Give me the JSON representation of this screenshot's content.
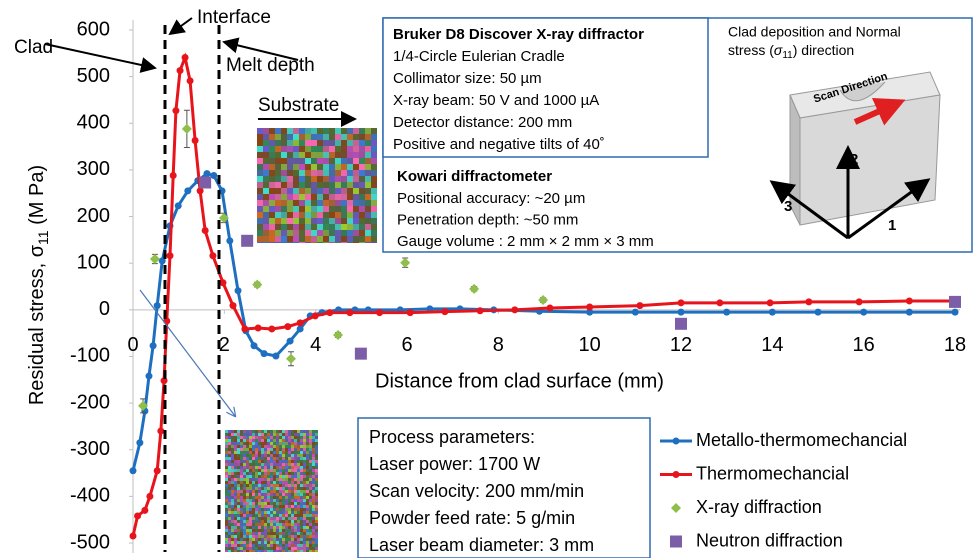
{
  "chart_data": {
    "type": "line",
    "x_label": "Distance from clad surface (mm)",
    "y_label": [
      "Residual stress, σ",
      "11",
      " (M Pa)"
    ],
    "xlim": [
      0,
      18
    ],
    "ylim": [
      -500,
      600
    ],
    "xticks": [
      0,
      2,
      4,
      6,
      8,
      10,
      12,
      14,
      16,
      18
    ],
    "yticks": [
      -500,
      -400,
      -300,
      -200,
      -100,
      0,
      100,
      200,
      300,
      400,
      500,
      600
    ],
    "series": [
      {
        "name": "Metallo-thermomechancial",
        "color": "#1f6fc0",
        "style": "line-marker",
        "x": [
          0,
          0.15,
          0.26,
          0.35,
          0.44,
          0.53,
          0.64,
          0.81,
          0.99,
          1.2,
          1.42,
          1.62,
          1.77,
          1.95,
          2.12,
          2.3,
          2.47,
          2.65,
          2.87,
          3.13,
          3.44,
          3.66,
          3.88,
          4.14,
          4.5,
          4.86,
          5.15,
          5.85,
          6.5,
          7.16,
          7.9,
          8.9,
          10,
          11,
          12,
          13,
          14,
          15,
          16,
          17,
          18
        ],
        "values": [
          -345,
          -285,
          -217,
          -142,
          -77,
          9,
          105,
          180,
          223,
          255,
          277,
          292,
          288,
          255,
          148,
          41,
          -45,
          -77,
          -94,
          -99,
          -67,
          -41,
          -13,
          -6,
          0,
          0,
          0,
          0,
          2,
          2,
          0,
          -3,
          -5,
          -5,
          -5,
          -5,
          -5,
          -5,
          -5,
          -5,
          -5
        ]
      },
      {
        "name": "Thermomechancial",
        "color": "#e8141c",
        "style": "line-marker",
        "x": [
          0,
          0.1,
          0.26,
          0.37,
          0.53,
          0.61,
          0.68,
          0.74,
          0.81,
          0.88,
          0.94,
          1.03,
          1.14,
          1.25,
          1.36,
          1.47,
          1.58,
          1.75,
          1.97,
          2.19,
          2.45,
          2.74,
          3.04,
          3.39,
          3.66,
          3.99,
          4.31,
          4.75,
          5.4,
          6.07,
          6.83,
          7.6,
          8.36,
          9.13,
          10,
          11.1,
          12,
          12.85,
          13.95,
          14.8,
          15.9,
          17,
          18
        ],
        "values": [
          -485,
          -442,
          -430,
          -400,
          -345,
          -260,
          -152,
          -24,
          116,
          288,
          427,
          513,
          541,
          491,
          363,
          255,
          170,
          116,
          58,
          9,
          -41,
          -39,
          -41,
          -36,
          -28,
          -13,
          -6,
          -6,
          -6,
          -6,
          -4,
          -2,
          0,
          4,
          6,
          9,
          15,
          15,
          15,
          17,
          17,
          19,
          19
        ]
      },
      {
        "name": "X-ray diffraction",
        "color": "#8fbf4a",
        "style": "diamond",
        "x": [
          0.22,
          0.48,
          1.18,
          1.99,
          2.72,
          3.46,
          4.49,
          5.96,
          7.47,
          8.98
        ],
        "values": [
          -206,
          109,
          388,
          197,
          54,
          -105,
          -54,
          101,
          45,
          21
        ],
        "errors": [
          15,
          10,
          40,
          10,
          5,
          15,
          5,
          10,
          5,
          5
        ]
      },
      {
        "name": "Neutron diffraction",
        "color": "#7b5ea7",
        "style": "square",
        "x": [
          1.58,
          2.5,
          4.99,
          12,
          18
        ],
        "values": [
          273,
          148,
          -94,
          -30,
          17
        ]
      }
    ]
  },
  "annotations": {
    "clad": "Clad",
    "interface": "Interface",
    "melt_depth": "Melt depth",
    "substrate": "Substrate"
  },
  "bruker": {
    "title": "Bruker D8 Discover X-ray diffractor",
    "lines": [
      "1/4-Circle Eulerian Cradle",
      "Collimator size: 50 µm",
      "X-ray beam: 50 V and 1000 µA",
      "Detector distance: 200 mm",
      "Positive and negative tilts of 40˚"
    ]
  },
  "kowari": {
    "title": "Kowari diffractometer",
    "lines": [
      "Positional accuracy: ~20 µm",
      "Penetration depth: ~50 mm",
      "Gauge volume : 2 mm × 2 mm × 3 mm"
    ]
  },
  "diagram": {
    "title": [
      "Clad deposition and Normal",
      [
        "stress (",
        "σ",
        "11",
        ") direction"
      ]
    ],
    "scan": "Scan Direction",
    "axes": [
      "1",
      "2",
      "3"
    ]
  },
  "process": {
    "title": "Process parameters:",
    "lines": [
      "Laser power: 1700 W",
      "Scan velocity: 200 mm/min",
      "Powder feed rate: 5 g/min",
      "Laser beam diameter: 3 mm"
    ]
  }
}
